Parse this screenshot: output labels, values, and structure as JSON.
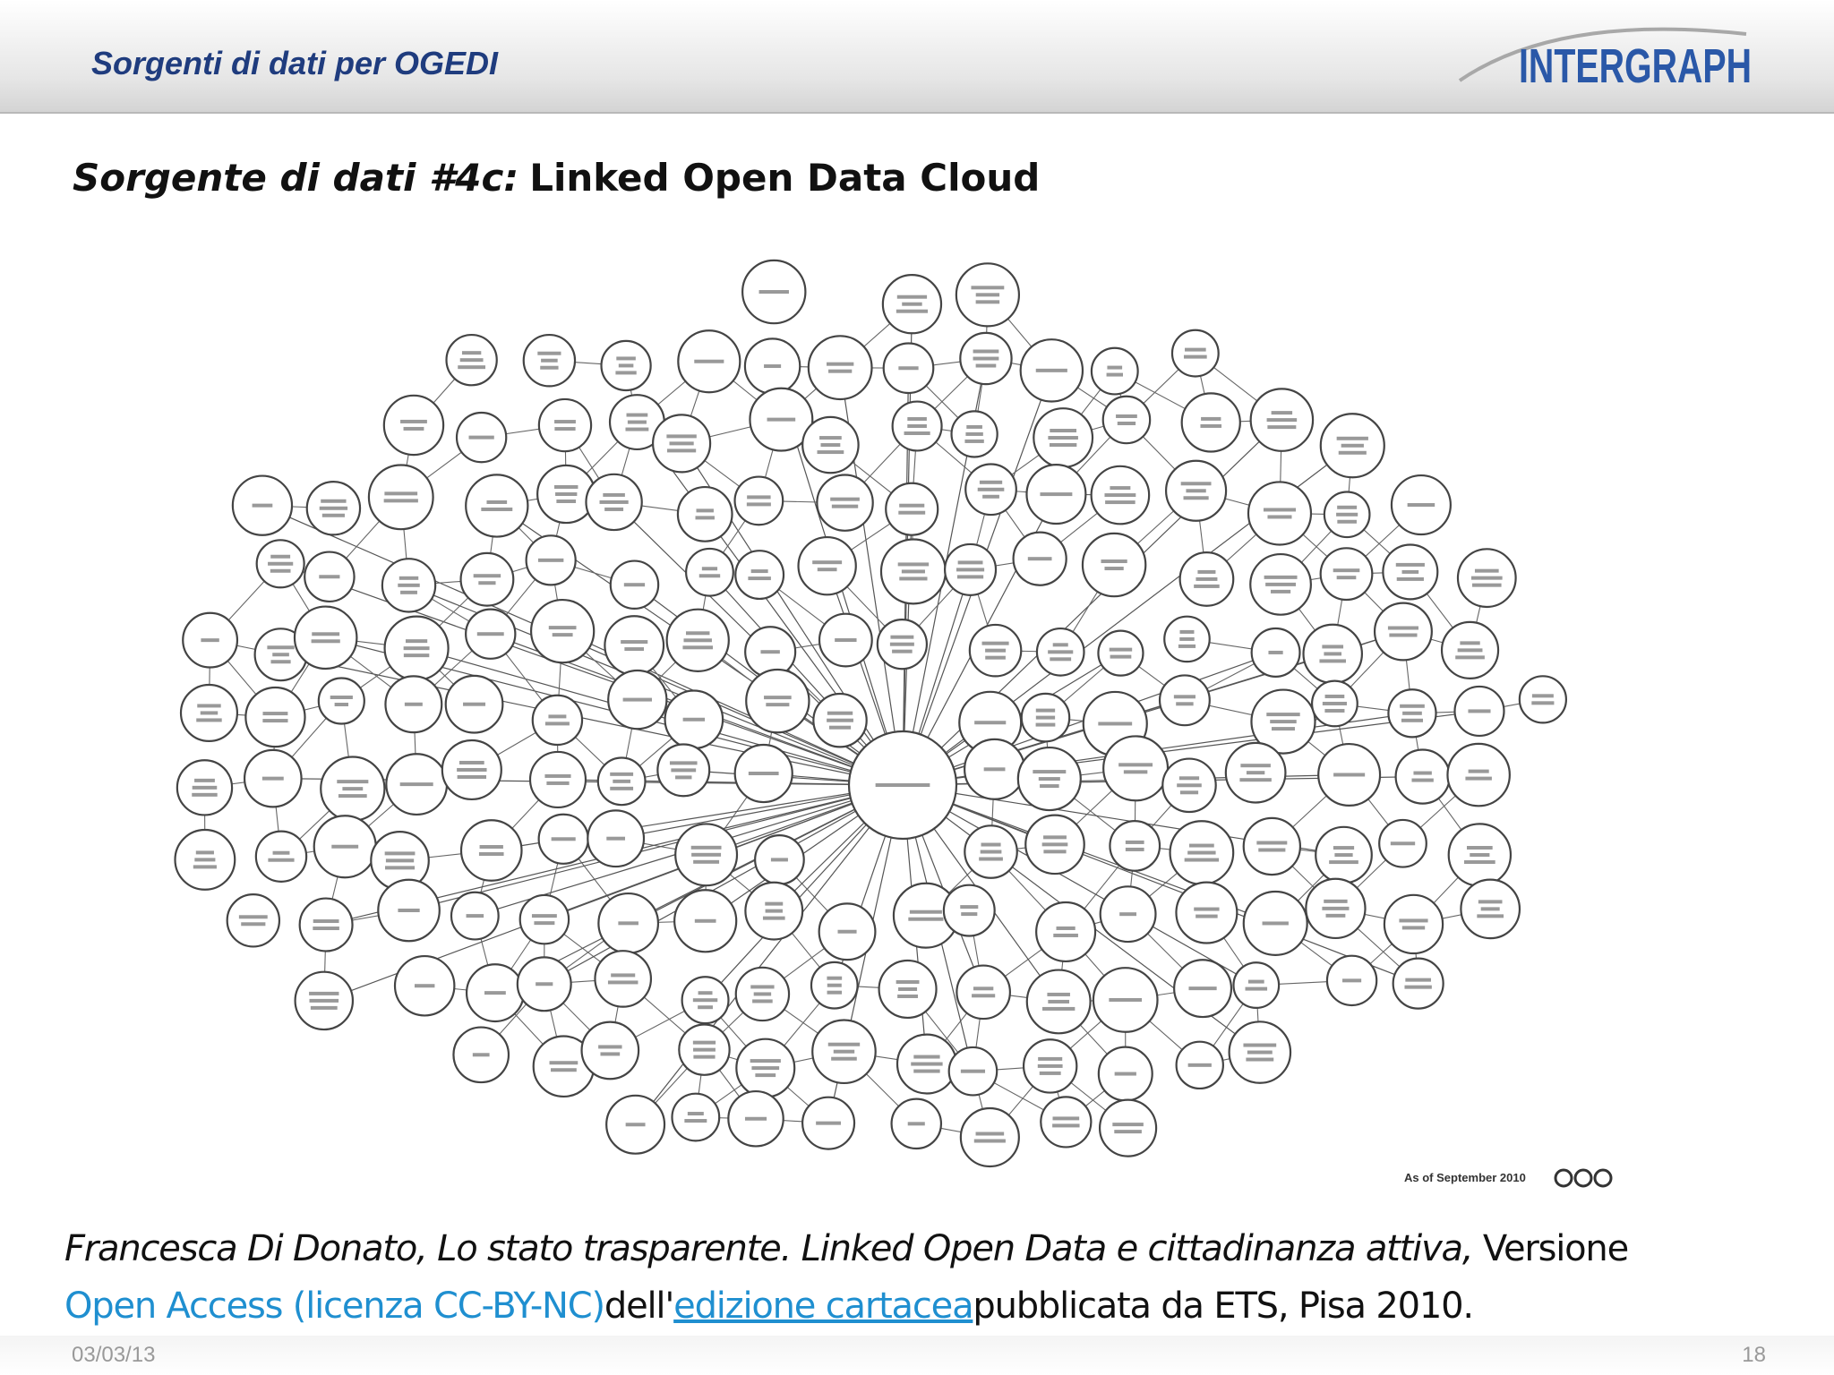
{
  "header": {
    "title": "Sorgenti di dati per OGEDI",
    "logo": "INTERGRAPH"
  },
  "subtitle": {
    "label": "Sorgente di dati #4c:",
    "text": "Linked Open Data Cloud"
  },
  "figure": {
    "caption": "As of September 2010"
  },
  "citation": {
    "author_title": "Francesca Di Donato, Lo stato trasparente. Linked Open Data e cittadinanza attiva,",
    "version": "Versione",
    "open_access": "Open Access (licenza CC-BY-NC)",
    "dell": "dell'",
    "link": "edizione cartacea",
    "publisher": "pubblicata da ETS, Pisa 2010."
  },
  "footer": {
    "date": "03/03/13",
    "page": "18"
  }
}
